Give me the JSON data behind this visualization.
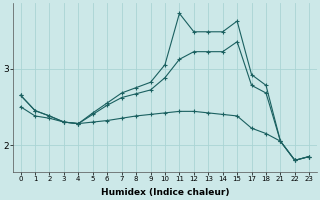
{
  "xlabel": "Humidex (Indice chaleur)",
  "bg_color": "#cce8e8",
  "grid_color": "#aad4d4",
  "line_color": "#1a6060",
  "x_indices": [
    0,
    1,
    2,
    3,
    4,
    5,
    6,
    7,
    8,
    9,
    10,
    11,
    12,
    13,
    14,
    15,
    16,
    17,
    18,
    19,
    20
  ],
  "xtick_labels": [
    "0",
    "1",
    "2",
    "3",
    "4",
    "5",
    "6",
    "7",
    "8",
    "9",
    "10",
    "11",
    "12",
    "13",
    "14",
    "15",
    "17",
    "18",
    "21",
    "22",
    "23"
  ],
  "line1": [
    2.65,
    2.45,
    2.38,
    2.3,
    2.28,
    2.42,
    2.55,
    2.68,
    2.75,
    2.82,
    3.05,
    3.72,
    3.48,
    3.48,
    3.48,
    3.62,
    2.92,
    2.78,
    2.05,
    1.8,
    1.85
  ],
  "line2": [
    2.65,
    2.45,
    2.38,
    2.3,
    2.28,
    2.4,
    2.52,
    2.62,
    2.67,
    2.72,
    2.88,
    3.12,
    3.22,
    3.22,
    3.22,
    3.35,
    2.78,
    2.68,
    2.05,
    1.8,
    1.85
  ],
  "line3": [
    2.5,
    2.38,
    2.35,
    2.3,
    2.28,
    2.3,
    2.32,
    2.35,
    2.38,
    2.4,
    2.42,
    2.44,
    2.44,
    2.42,
    2.4,
    2.38,
    2.22,
    2.15,
    2.05,
    1.8,
    1.85
  ],
  "ylim": [
    1.65,
    3.85
  ],
  "yticks": [
    2,
    3
  ],
  "figsize": [
    3.2,
    2.0
  ],
  "dpi": 100
}
